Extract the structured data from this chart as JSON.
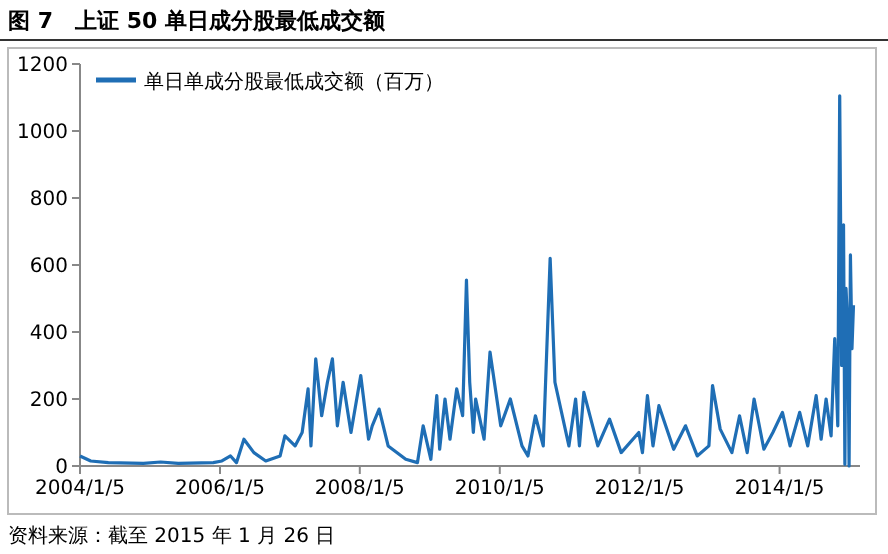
{
  "chart_data": {
    "type": "line",
    "title": "图 7　上证 50 单日成分股最低成交额",
    "annotations": [
      "资料来源：截至 2015 年 1 月 26 日"
    ],
    "legend": "top left",
    "grid": false,
    "marker": "none",
    "line_style": "solid",
    "ylim": [
      0,
      1200
    ],
    "yticks": [
      0,
      200,
      400,
      600,
      800,
      1000,
      1200
    ],
    "xlim": [
      "2004-01-05",
      "2015-03-01"
    ],
    "xticks": [
      {
        "value": "2004-01-05",
        "label": "2004/1/5"
      },
      {
        "value": "2006-01-05",
        "label": "2006/1/5"
      },
      {
        "value": "2008-01-05",
        "label": "2008/1/5"
      },
      {
        "value": "2010-01-05",
        "label": "2010/1/5"
      },
      {
        "value": "2012-01-05",
        "label": "2012/1/5"
      },
      {
        "value": "2014-01-05",
        "label": "2014/1/5"
      }
    ],
    "series": [
      {
        "name": "单日单成分股最低成交额（百万）",
        "color": "#1f6eb5",
        "x": [
          "2004-01-05",
          "2004-03-01",
          "2004-06-01",
          "2004-12-01",
          "2005-03-01",
          "2005-06-01",
          "2005-12-01",
          "2006-01-15",
          "2006-03-01",
          "2006-04-01",
          "2006-05-10",
          "2006-07-01",
          "2006-09-01",
          "2006-11-15",
          "2006-12-10",
          "2007-02-01",
          "2007-03-10",
          "2007-04-10",
          "2007-04-25",
          "2007-05-20",
          "2007-06-20",
          "2007-07-20",
          "2007-08-15",
          "2007-09-10",
          "2007-10-10",
          "2007-11-20",
          "2008-01-10",
          "2008-02-20",
          "2008-03-10",
          "2008-04-15",
          "2008-06-01",
          "2008-09-01",
          "2008-11-01",
          "2008-12-01",
          "2009-01-10",
          "2009-02-10",
          "2009-02-25",
          "2009-03-25",
          "2009-04-20",
          "2009-05-25",
          "2009-06-25",
          "2009-07-15",
          "2009-08-01",
          "2009-08-20",
          "2009-09-01",
          "2009-10-15",
          "2009-11-15",
          "2010-01-10",
          "2010-03-01",
          "2010-05-01",
          "2010-06-01",
          "2010-07-10",
          "2010-08-20",
          "2010-09-25",
          "2010-10-20",
          "2011-01-01",
          "2011-02-05",
          "2011-02-25",
          "2011-03-20",
          "2011-06-01",
          "2011-08-01",
          "2011-10-01",
          "2012-01-01",
          "2012-01-20",
          "2012-02-15",
          "2012-03-15",
          "2012-04-15",
          "2012-07-01",
          "2012-09-01",
          "2012-11-01",
          "2013-01-01",
          "2013-01-20",
          "2013-03-01",
          "2013-05-01",
          "2013-06-10",
          "2013-07-20",
          "2013-08-25",
          "2013-10-15",
          "2013-12-01",
          "2014-01-20",
          "2014-03-01",
          "2014-04-20",
          "2014-06-01",
          "2014-07-15",
          "2014-08-10",
          "2014-09-05",
          "2014-10-01",
          "2014-10-20",
          "2014-11-05",
          "2014-11-15",
          "2014-11-25",
          "2014-12-05",
          "2014-12-12",
          "2014-12-18",
          "2014-12-28",
          "2015-01-03",
          "2015-01-10",
          "2015-01-18",
          "2015-01-26"
        ],
        "values": [
          30,
          15,
          10,
          8,
          12,
          8,
          10,
          15,
          30,
          10,
          80,
          40,
          15,
          30,
          90,
          60,
          100,
          230,
          60,
          320,
          150,
          250,
          320,
          120,
          250,
          100,
          270,
          80,
          120,
          170,
          60,
          20,
          10,
          120,
          20,
          210,
          50,
          200,
          80,
          230,
          150,
          555,
          250,
          100,
          200,
          80,
          340,
          120,
          200,
          60,
          30,
          150,
          60,
          620,
          250,
          60,
          200,
          60,
          220,
          60,
          140,
          40,
          100,
          40,
          210,
          60,
          180,
          50,
          120,
          30,
          60,
          240,
          110,
          40,
          150,
          40,
          200,
          50,
          100,
          160,
          60,
          160,
          60,
          210,
          80,
          200,
          90,
          380,
          120,
          1105,
          300,
          720,
          5,
          530,
          400,
          0,
          630,
          350,
          480
        ]
      }
    ]
  }
}
